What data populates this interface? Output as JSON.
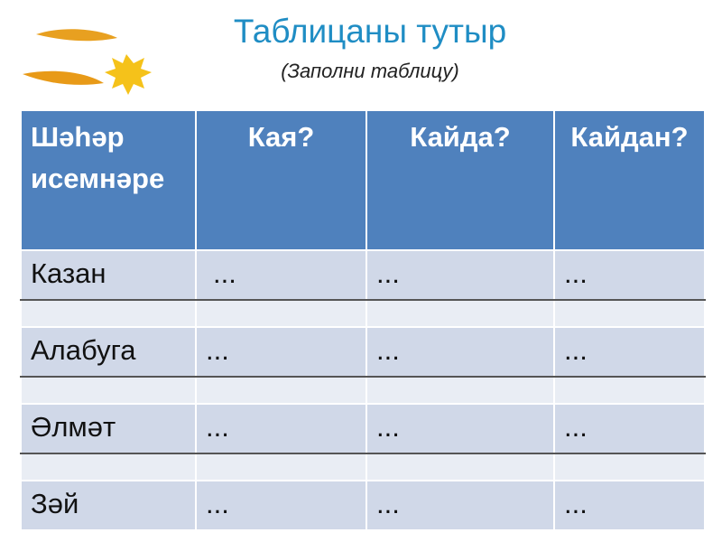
{
  "title": "Таблицаны тутыр",
  "subtitle": "(Заполни таблицу)",
  "table": {
    "headers": [
      "Шәһәр исемнәре",
      "Кая?",
      "Кайда?",
      "Кайдан?"
    ],
    "rows": [
      [
        "Казан",
        "...",
        "...",
        "..."
      ],
      [
        "Алабуга",
        "...",
        "...",
        "..."
      ],
      [
        "Әлмәт",
        "...",
        "...",
        "..."
      ],
      [
        "Зәй",
        "...",
        "...",
        "..."
      ]
    ]
  },
  "colors": {
    "header": "#4f81bd",
    "row": "#d0d8e8",
    "row_alt": "#e9edf4",
    "title": "#1f8dc4"
  }
}
